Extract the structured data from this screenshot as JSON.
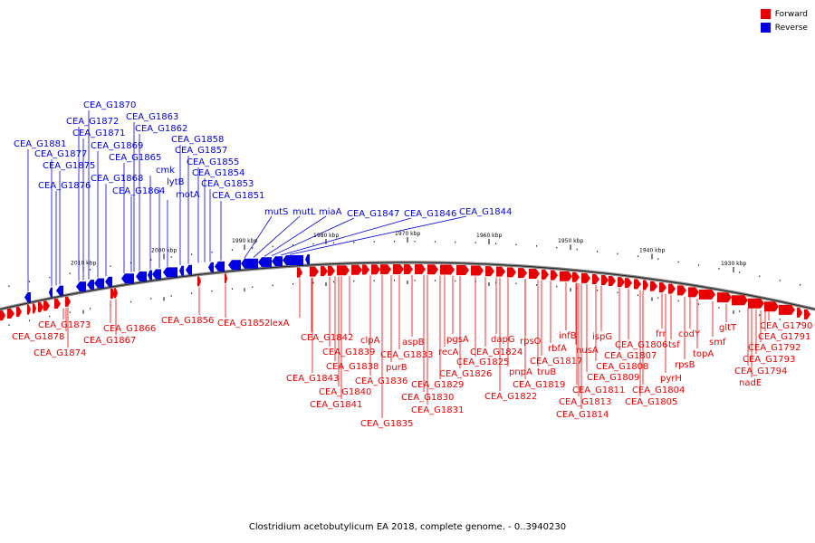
{
  "legend": {
    "forward_label": "Forward",
    "reverse_label": "Reverse",
    "forward_color": "#e80000",
    "reverse_color": "#0000e0"
  },
  "caption": "Clostridium acetobutylicum EA 2018, complete genome. - 0..3940230",
  "ticks": [
    {
      "label": "2010 kbp"
    },
    {
      "label": "2000 kbp"
    },
    {
      "label": "1990 kbp"
    },
    {
      "label": "1980 kbp"
    },
    {
      "label": "1970 kbp"
    },
    {
      "label": "1960 kbp"
    },
    {
      "label": "1950 kbp"
    },
    {
      "label": "1940 kbp"
    },
    {
      "label": "1930 kbp"
    }
  ],
  "reverse_genes": [
    {
      "name": "CEA_G1881"
    },
    {
      "name": "CEA_G1877"
    },
    {
      "name": "CEA_G1875"
    },
    {
      "name": "CEA_G1876"
    },
    {
      "name": "CEA_G1872"
    },
    {
      "name": "CEA_G1871"
    },
    {
      "name": "CEA_G1870"
    },
    {
      "name": "CEA_G1869"
    },
    {
      "name": "CEA_G1868"
    },
    {
      "name": "CEA_G1865"
    },
    {
      "name": "CEA_G1863"
    },
    {
      "name": "CEA_G1864"
    },
    {
      "name": "CEA_G1862"
    },
    {
      "name": "cmk"
    },
    {
      "name": "lytB"
    },
    {
      "name": "motA"
    },
    {
      "name": "CEA_G1858"
    },
    {
      "name": "CEA_G1857"
    },
    {
      "name": "CEA_G1855"
    },
    {
      "name": "CEA_G1854"
    },
    {
      "name": "CEA_G1853"
    },
    {
      "name": "CEA_G1851"
    },
    {
      "name": "mutS"
    },
    {
      "name": "mutL"
    },
    {
      "name": "miaA"
    },
    {
      "name": "CEA_G1847"
    },
    {
      "name": "CEA_G1846"
    },
    {
      "name": "CEA_G1844"
    }
  ],
  "forward_genes": [
    {
      "name": "CEA_G1873"
    },
    {
      "name": "CEA_G1878"
    },
    {
      "name": "CEA_G1874"
    },
    {
      "name": "CEA_G1866"
    },
    {
      "name": "CEA_G1867"
    },
    {
      "name": "CEA_G1856"
    },
    {
      "name": "CEA_G1852"
    },
    {
      "name": "lexA"
    },
    {
      "name": "CEA_G1842"
    },
    {
      "name": "CEA_G1843"
    },
    {
      "name": "CEA_G1839"
    },
    {
      "name": "CEA_G1838"
    },
    {
      "name": "CEA_G1840"
    },
    {
      "name": "CEA_G1841"
    },
    {
      "name": "clpA"
    },
    {
      "name": "CEA_G1836"
    },
    {
      "name": "CEA_G1835"
    },
    {
      "name": "purB"
    },
    {
      "name": "aspB"
    },
    {
      "name": "CEA_G1833"
    },
    {
      "name": "CEA_G1830"
    },
    {
      "name": "CEA_G1831"
    },
    {
      "name": "CEA_G1829"
    },
    {
      "name": "pgsA"
    },
    {
      "name": "recA"
    },
    {
      "name": "CEA_G1826"
    },
    {
      "name": "CEA_G1825"
    },
    {
      "name": "CEA_G1824"
    },
    {
      "name": "dapG"
    },
    {
      "name": "CEA_G1822"
    },
    {
      "name": "pnpA"
    },
    {
      "name": "rpsO"
    },
    {
      "name": "truB"
    },
    {
      "name": "CEA_G1819"
    },
    {
      "name": "CEA_G1817"
    },
    {
      "name": "rbfA"
    },
    {
      "name": "infB"
    },
    {
      "name": "nusA"
    },
    {
      "name": "CEA_G1811"
    },
    {
      "name": "CEA_G1813"
    },
    {
      "name": "CEA_G1814"
    },
    {
      "name": "ispG"
    },
    {
      "name": "CEA_G1809"
    },
    {
      "name": "CEA_G1808"
    },
    {
      "name": "CEA_G1806"
    },
    {
      "name": "CEA_G1807"
    },
    {
      "name": "frr"
    },
    {
      "name": "tsf"
    },
    {
      "name": "pyrH"
    },
    {
      "name": "CEA_G1804"
    },
    {
      "name": "CEA_G1805"
    },
    {
      "name": "codY"
    },
    {
      "name": "rpsB"
    },
    {
      "name": "topA"
    },
    {
      "name": "smf"
    },
    {
      "name": "gltT"
    },
    {
      "name": "CEA_G1790"
    },
    {
      "name": "CEA_G1791"
    },
    {
      "name": "CEA_G1792"
    },
    {
      "name": "CEA_G1793"
    },
    {
      "name": "CEA_G1794"
    },
    {
      "name": "nadE"
    }
  ]
}
